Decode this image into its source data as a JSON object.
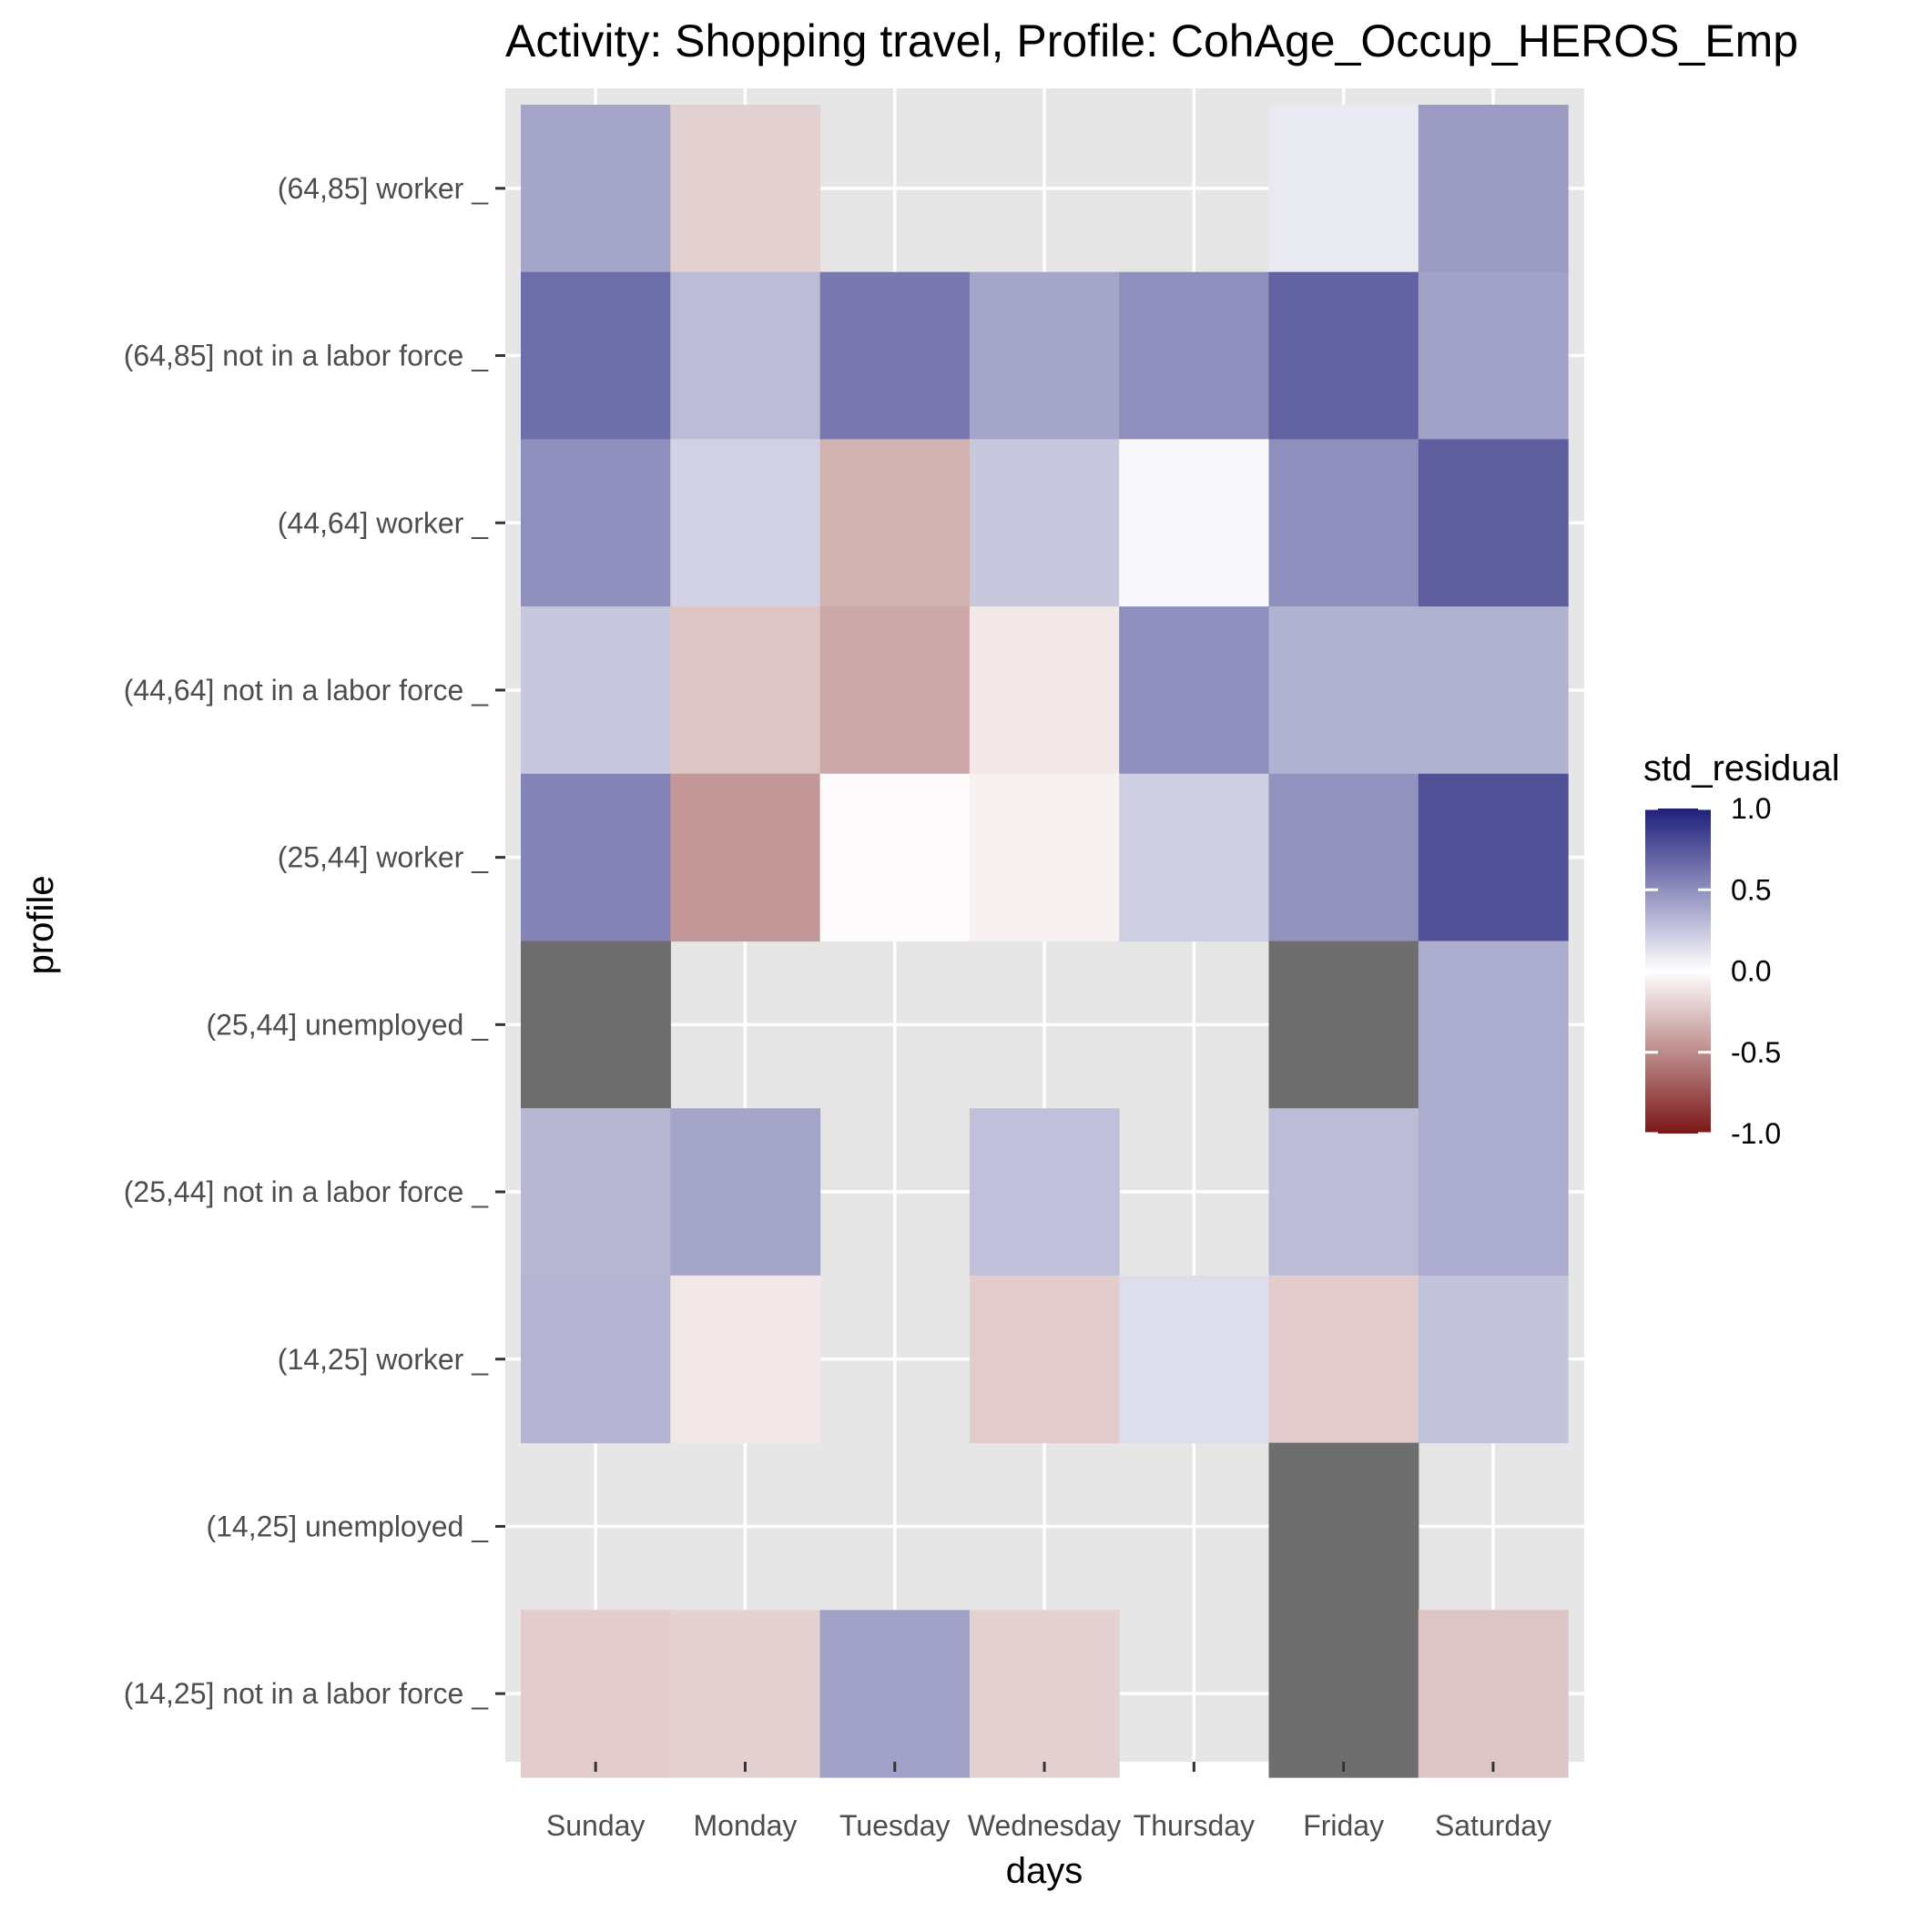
{
  "chart_data": {
    "type": "heatmap",
    "title": "Activity: Shopping travel, Profile: CohAge_Occup_HEROS_Emp",
    "xlabel": "days",
    "ylabel": "profile",
    "x_categories": [
      "Sunday",
      "Monday",
      "Tuesday",
      "Wednesday",
      "Thursday",
      "Friday",
      "Saturday"
    ],
    "y_categories": [
      "(64,85] worker _",
      "(64,85] not in a labor force _",
      "(44,64] worker _",
      "(44,64] not in a labor force _",
      "(25,44] worker _",
      "(25,44] unemployed _",
      "(25,44] not in a labor force _",
      "(14,25] worker _",
      "(14,25] unemployed _",
      "(14,25] not in a labor force _"
    ],
    "values": [
      [
        0.4,
        -0.2,
        null,
        null,
        null,
        0.1,
        0.45
      ],
      [
        0.65,
        0.3,
        0.6,
        0.4,
        0.5,
        0.7,
        0.42
      ],
      [
        0.5,
        0.2,
        -0.33,
        0.25,
        0.03,
        0.5,
        0.72
      ],
      [
        0.25,
        -0.25,
        -0.38,
        -0.1,
        0.5,
        0.35,
        0.35
      ],
      [
        0.55,
        -0.45,
        -0.02,
        -0.06,
        0.22,
        0.48,
        0.78
      ],
      [
        "NA",
        null,
        null,
        null,
        null,
        "NA",
        0.37
      ],
      [
        0.32,
        0.4,
        null,
        0.28,
        null,
        0.3,
        0.37
      ],
      [
        0.33,
        -0.1,
        null,
        -0.22,
        0.15,
        -0.22,
        0.27
      ],
      [
        null,
        null,
        null,
        null,
        null,
        "NA",
        null
      ],
      [
        -0.22,
        -0.2,
        0.42,
        -0.2,
        null,
        "NA",
        -0.25
      ]
    ],
    "legend": {
      "title": "std_residual",
      "placement": "right",
      "ticks": [
        "1.0",
        "0.5",
        "0.0",
        "-0.5",
        "-1.0"
      ],
      "range": [
        -1.0,
        1.0
      ]
    },
    "na_color": "#6e6e6e",
    "high_color": "#1f1f7a",
    "mid_color": "#ffffff",
    "low_color": "#7a1717",
    "panel_color": "#e6e6e6",
    "grid": true
  }
}
